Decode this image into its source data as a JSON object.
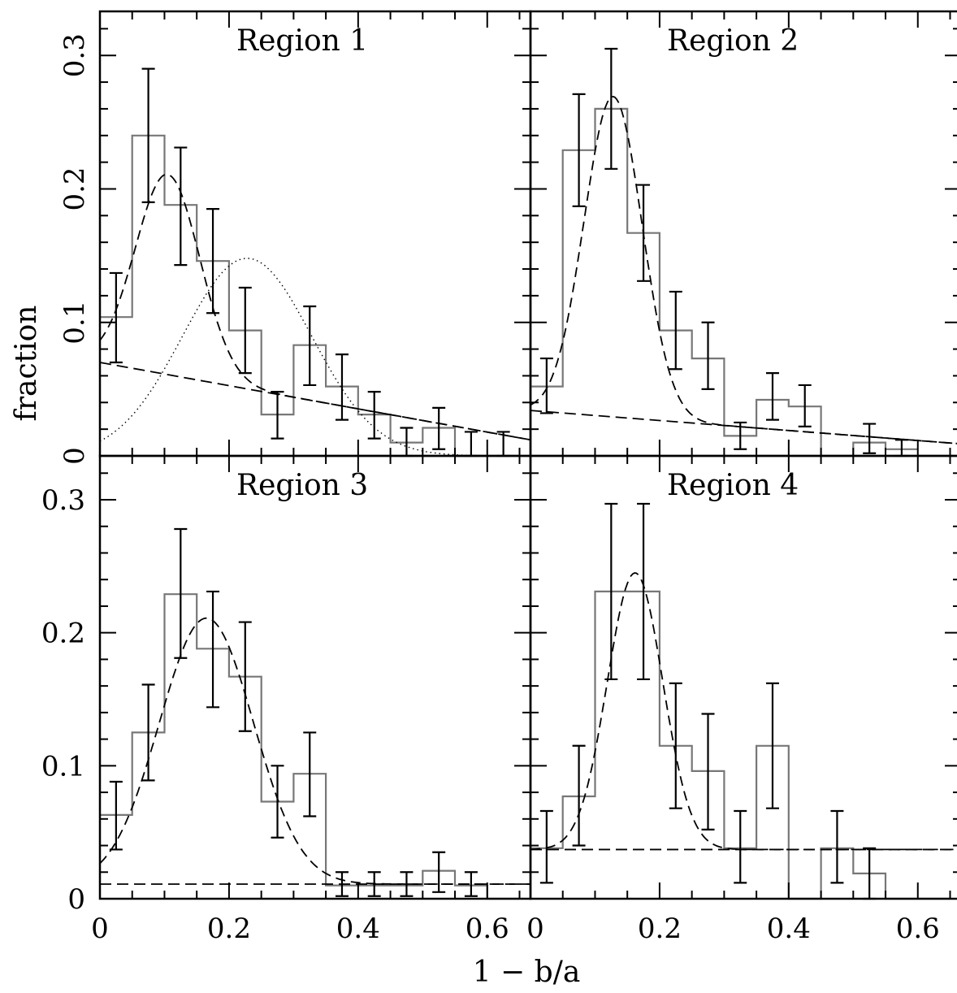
{
  "figure": {
    "xlabel": "1 − b/a",
    "ylabel": "fraction"
  },
  "chart_data": [
    {
      "type": "bar",
      "title": "Region 1",
      "xlim": [
        0,
        0.667
      ],
      "ylim": [
        0,
        0.333
      ],
      "xticks": [
        "0",
        "0.2",
        "0.4",
        "0.6"
      ],
      "yticks": [
        "0",
        "0.1",
        "0.2",
        "0.3"
      ],
      "bin_width": 0.05,
      "histogram": [
        0.104,
        0.24,
        0.188,
        0.146,
        0.094,
        0.031,
        0.083,
        0.052,
        0.031,
        0.01,
        0.021,
        0.0
      ],
      "errorbars": [
        {
          "x": 0.025,
          "lo": 0.07,
          "hi": 0.137
        },
        {
          "x": 0.075,
          "lo": 0.19,
          "hi": 0.29
        },
        {
          "x": 0.125,
          "lo": 0.143,
          "hi": 0.231
        },
        {
          "x": 0.175,
          "lo": 0.107,
          "hi": 0.185
        },
        {
          "x": 0.225,
          "lo": 0.062,
          "hi": 0.126
        },
        {
          "x": 0.275,
          "lo": 0.013,
          "hi": 0.048
        },
        {
          "x": 0.325,
          "lo": 0.053,
          "hi": 0.112
        },
        {
          "x": 0.375,
          "lo": 0.027,
          "hi": 0.076
        },
        {
          "x": 0.425,
          "lo": 0.013,
          "hi": 0.048
        },
        {
          "x": 0.475,
          "lo": 0.0,
          "hi": 0.021
        },
        {
          "x": 0.525,
          "lo": 0.005,
          "hi": 0.036
        },
        {
          "x": 0.575,
          "lo": 0.0,
          "hi": 0.018
        },
        {
          "x": 0.625,
          "lo": 0.0,
          "hi": 0.018
        }
      ],
      "fit_gaussian": {
        "amp": 0.15,
        "mu": 0.105,
        "sigma": 0.05
      },
      "fit_background": {
        "type": "linear",
        "y0": 0.07,
        "y1": 0.012
      },
      "dotted_gaussian": {
        "amp": 0.148,
        "mu": 0.228,
        "sigma": 0.1
      }
    },
    {
      "type": "bar",
      "title": "Region 2",
      "xlim": [
        0,
        0.667
      ],
      "ylim": [
        0,
        0.333
      ],
      "xticks": [
        "0",
        "0.2",
        "0.4",
        "0.6"
      ],
      "yticks": [],
      "bin_width": 0.05,
      "histogram": [
        0.052,
        0.229,
        0.26,
        0.167,
        0.094,
        0.073,
        0.015,
        0.042,
        0.037,
        0.0,
        0.01,
        0.005
      ],
      "errorbars": [
        {
          "x": 0.025,
          "lo": 0.032,
          "hi": 0.073
        },
        {
          "x": 0.075,
          "lo": 0.187,
          "hi": 0.271
        },
        {
          "x": 0.125,
          "lo": 0.215,
          "hi": 0.305
        },
        {
          "x": 0.175,
          "lo": 0.131,
          "hi": 0.203
        },
        {
          "x": 0.225,
          "lo": 0.065,
          "hi": 0.123
        },
        {
          "x": 0.275,
          "lo": 0.05,
          "hi": 0.1
        },
        {
          "x": 0.325,
          "lo": 0.005,
          "hi": 0.025
        },
        {
          "x": 0.375,
          "lo": 0.027,
          "hi": 0.062
        },
        {
          "x": 0.425,
          "lo": 0.022,
          "hi": 0.053
        },
        {
          "x": 0.525,
          "lo": 0.002,
          "hi": 0.024
        },
        {
          "x": 0.575,
          "lo": 0.0,
          "hi": 0.012
        }
      ],
      "fit_gaussian": {
        "amp": 0.24,
        "mu": 0.128,
        "sigma": 0.045
      },
      "fit_background": {
        "type": "linear",
        "y0": 0.034,
        "y1": 0.009
      },
      "dotted_gaussian": null
    },
    {
      "type": "bar",
      "title": "Region 3",
      "xlim": [
        0,
        0.667
      ],
      "ylim": [
        0,
        0.333
      ],
      "xticks": [
        "0",
        "0.2",
        "0.4",
        "0.6"
      ],
      "yticks": [
        "0",
        "0.1",
        "0.2",
        "0.3"
      ],
      "bin_width": 0.05,
      "histogram": [
        0.063,
        0.125,
        0.229,
        0.188,
        0.167,
        0.073,
        0.094,
        0.01,
        0.01,
        0.01,
        0.021,
        0.01,
        0.0
      ],
      "errorbars": [
        {
          "x": 0.025,
          "lo": 0.037,
          "hi": 0.088
        },
        {
          "x": 0.075,
          "lo": 0.089,
          "hi": 0.161
        },
        {
          "x": 0.125,
          "lo": 0.181,
          "hi": 0.278
        },
        {
          "x": 0.175,
          "lo": 0.144,
          "hi": 0.231
        },
        {
          "x": 0.225,
          "lo": 0.126,
          "hi": 0.208
        },
        {
          "x": 0.275,
          "lo": 0.046,
          "hi": 0.1
        },
        {
          "x": 0.325,
          "lo": 0.062,
          "hi": 0.125
        },
        {
          "x": 0.375,
          "lo": 0.002,
          "hi": 0.02
        },
        {
          "x": 0.425,
          "lo": 0.002,
          "hi": 0.02
        },
        {
          "x": 0.475,
          "lo": 0.002,
          "hi": 0.02
        },
        {
          "x": 0.525,
          "lo": 0.005,
          "hi": 0.035
        },
        {
          "x": 0.575,
          "lo": 0.002,
          "hi": 0.02
        }
      ],
      "fit_gaussian": {
        "amp": 0.2,
        "mu": 0.165,
        "sigma": 0.073
      },
      "fit_background": {
        "type": "constant",
        "y0": 0.011,
        "y1": 0.011
      },
      "dotted_gaussian": null
    },
    {
      "type": "bar",
      "title": "Region 4",
      "xlim": [
        0,
        0.667
      ],
      "ylim": [
        0,
        0.333
      ],
      "xticks": [
        "0",
        "0.2",
        "0.4",
        "0.6"
      ],
      "yticks": [],
      "bin_width": 0.05,
      "histogram": [
        0.038,
        0.077,
        0.231,
        0.231,
        0.115,
        0.096,
        0.038,
        0.115,
        0.0,
        0.038,
        0.019,
        0.0,
        0.0
      ],
      "errorbars": [
        {
          "x": 0.025,
          "lo": 0.012,
          "hi": 0.066
        },
        {
          "x": 0.075,
          "lo": 0.04,
          "hi": 0.115
        },
        {
          "x": 0.125,
          "lo": 0.165,
          "hi": 0.297
        },
        {
          "x": 0.175,
          "lo": 0.165,
          "hi": 0.297
        },
        {
          "x": 0.225,
          "lo": 0.068,
          "hi": 0.162
        },
        {
          "x": 0.275,
          "lo": 0.052,
          "hi": 0.139
        },
        {
          "x": 0.325,
          "lo": 0.012,
          "hi": 0.066
        },
        {
          "x": 0.375,
          "lo": 0.068,
          "hi": 0.162
        },
        {
          "x": 0.475,
          "lo": 0.012,
          "hi": 0.066
        },
        {
          "x": 0.525,
          "lo": 0.0,
          "hi": 0.038
        }
      ],
      "fit_gaussian": {
        "amp": 0.208,
        "mu": 0.162,
        "sigma": 0.043
      },
      "fit_background": {
        "type": "constant",
        "y0": 0.037,
        "y1": 0.037
      },
      "dotted_gaussian": null
    }
  ]
}
